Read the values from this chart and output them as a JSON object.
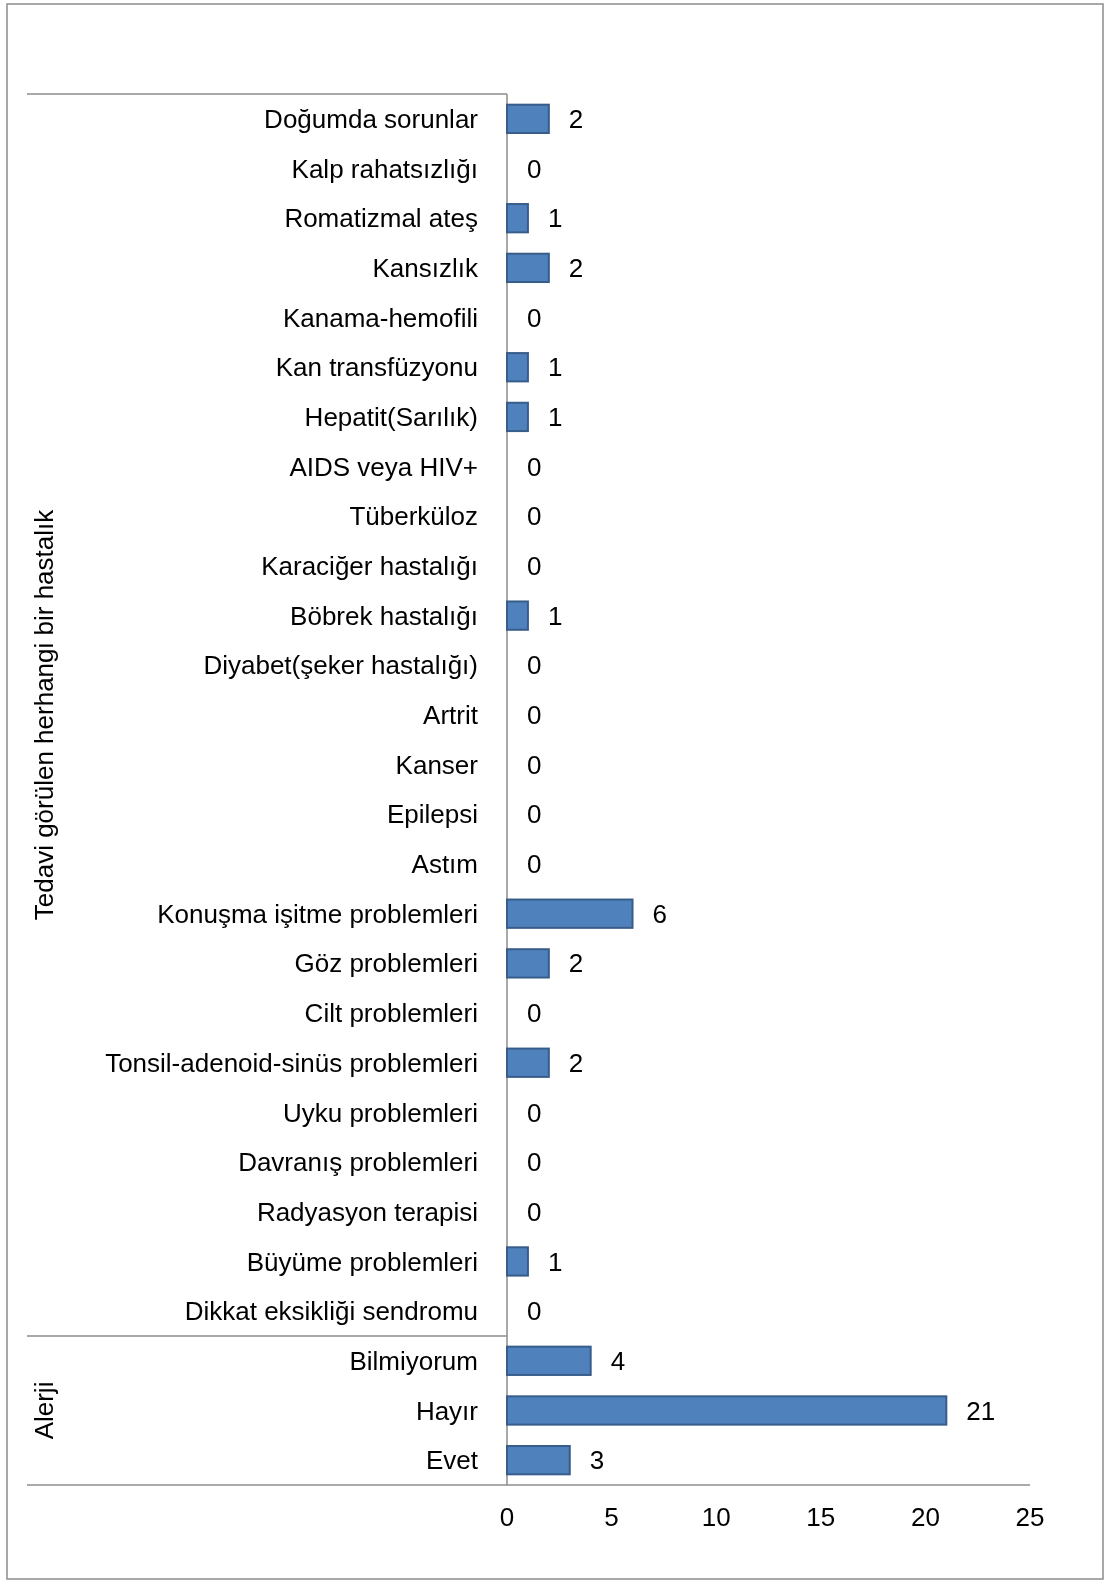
{
  "chart_data": {
    "type": "bar",
    "orientation": "horizontal",
    "categories": [
      "Doğumda sorunlar",
      "Kalp rahatsızlığı",
      "Romatizmal ateş",
      "Kansızlık",
      "Kanama-hemofili",
      "Kan transfüzyonu",
      "Hepatit(Sarılık)",
      "AIDS veya HIV+",
      "Tüberküloz",
      "Karaciğer hastalığı",
      "Böbrek hastalığı",
      "Diyabet(şeker hastalığı)",
      "Artrit",
      "Kanser",
      "Epilepsi",
      "Astım",
      "Konuşma işitme problemleri",
      "Göz problemleri",
      "Cilt problemleri",
      "Tonsil-adenoid-sinüs problemleri",
      "Uyku problemleri",
      "Davranış problemleri",
      "Radyasyon terapisi",
      "Büyüme problemleri",
      "Dikkat eksikliği sendromu",
      "Bilmiyorum",
      "Hayır",
      "Evet"
    ],
    "values": [
      2,
      0,
      1,
      2,
      0,
      1,
      1,
      0,
      0,
      0,
      1,
      0,
      0,
      0,
      0,
      0,
      6,
      2,
      0,
      2,
      0,
      0,
      0,
      1,
      0,
      4,
      21,
      3
    ],
    "color": "#4f81bd",
    "xlim": [
      0,
      25
    ],
    "xticks": [
      0,
      5,
      10,
      15,
      20,
      25
    ],
    "data_labels": true,
    "annotations": [
      "Tedavi görülen herhangi bir hastalık",
      "Alerji"
    ]
  }
}
